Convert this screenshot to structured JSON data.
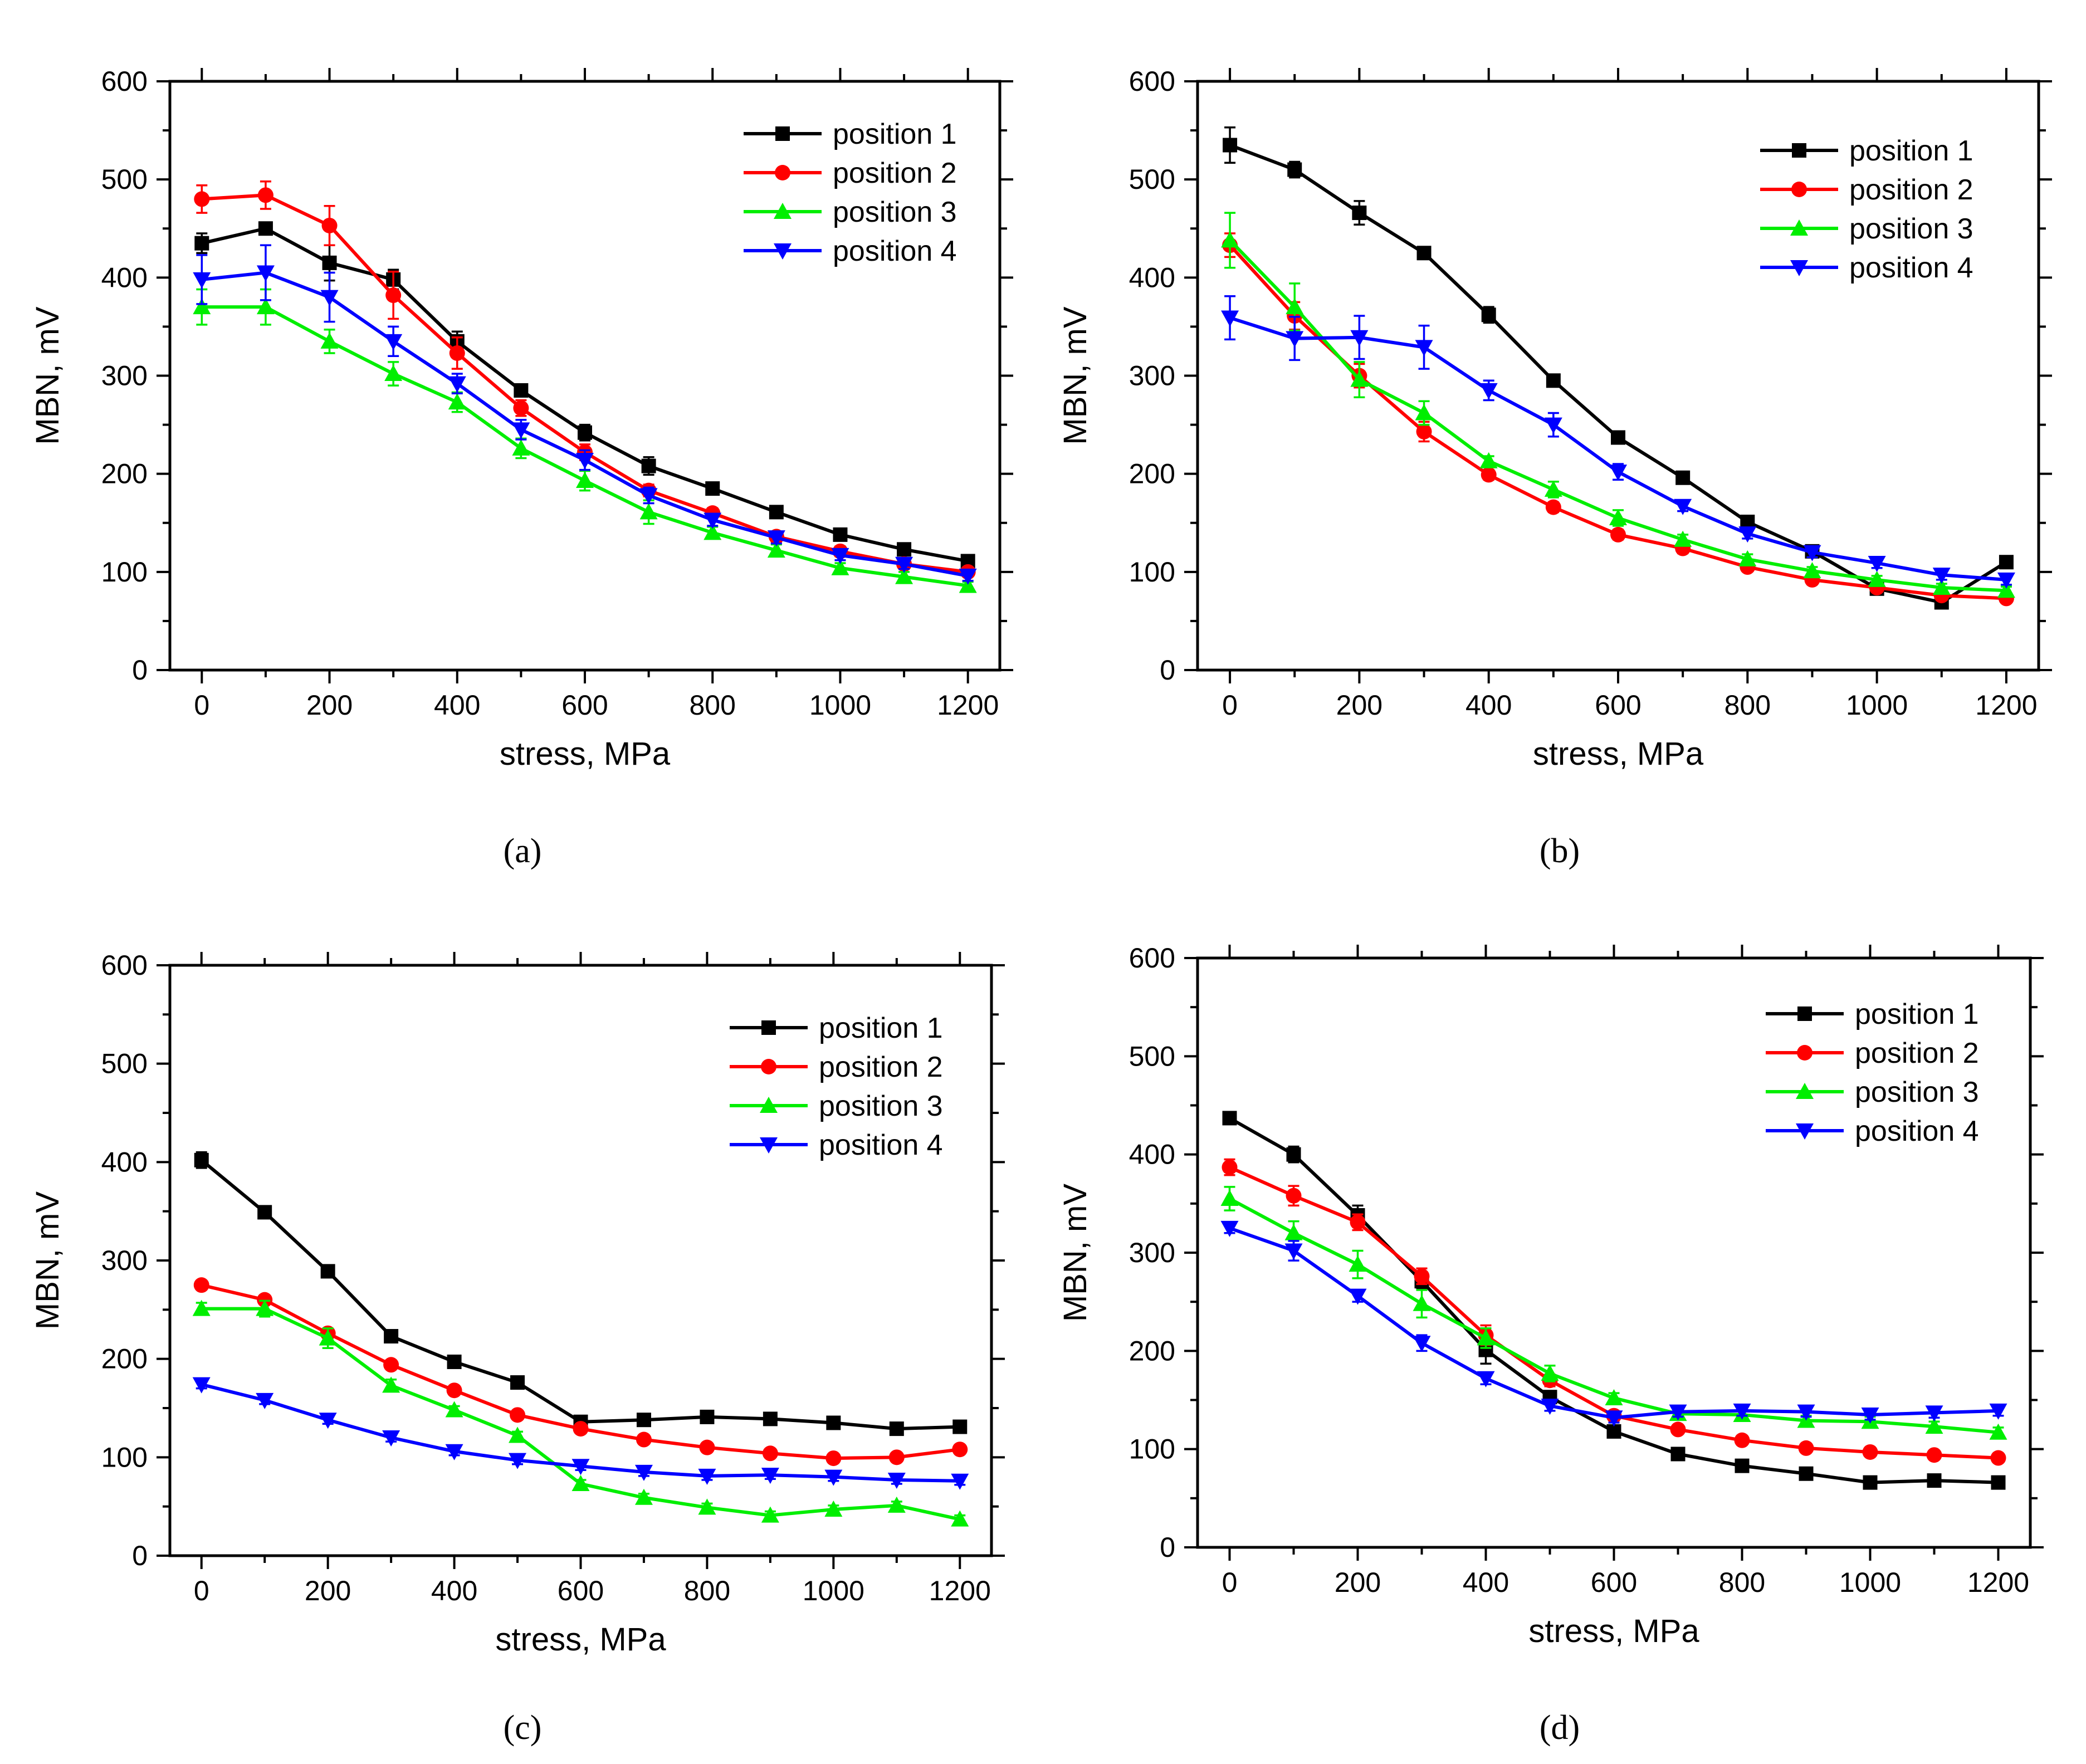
{
  "chart_data": [
    {
      "type": "line",
      "panel": "a",
      "xlabel": "stress, MPa",
      "ylabel": "MBN, mV",
      "xlim": [
        -50,
        1250
      ],
      "ylim": [
        0,
        600
      ],
      "xticks": [
        0,
        200,
        400,
        600,
        800,
        1000,
        1200
      ],
      "yticks": [
        0,
        100,
        200,
        300,
        400,
        500,
        600
      ],
      "x": [
        0,
        100,
        200,
        300,
        400,
        500,
        600,
        700,
        800,
        900,
        1000,
        1100,
        1200
      ],
      "legend_position": "top-right",
      "series": [
        {
          "name": "position 1",
          "color": "#000000",
          "marker": "square",
          "values": [
            435,
            450,
            415,
            398,
            335,
            285,
            242,
            208,
            185,
            161,
            138,
            123,
            111
          ],
          "errors": [
            10,
            6,
            18,
            10,
            10,
            6,
            8,
            9,
            6,
            5,
            5,
            5,
            5
          ]
        },
        {
          "name": "position 2",
          "color": "#ff0000",
          "marker": "circle",
          "values": [
            480,
            484,
            453,
            382,
            323,
            267,
            222,
            183,
            160,
            136,
            121,
            108,
            100
          ],
          "errors": [
            14,
            14,
            20,
            24,
            16,
            8,
            8,
            6,
            5,
            5,
            5,
            5,
            4
          ]
        },
        {
          "name": "position 3",
          "color": "#00ee00",
          "marker": "triangle-up",
          "values": [
            370,
            370,
            335,
            302,
            273,
            226,
            193,
            161,
            140,
            122,
            104,
            95,
            86
          ],
          "errors": [
            18,
            18,
            12,
            12,
            10,
            10,
            10,
            12,
            6,
            6,
            5,
            5,
            4
          ]
        },
        {
          "name": "position 4",
          "color": "#0000ff",
          "marker": "triangle-down",
          "values": [
            398,
            405,
            380,
            335,
            292,
            245,
            214,
            178,
            153,
            135,
            117,
            108,
            96
          ],
          "errors": [
            25,
            28,
            25,
            15,
            10,
            10,
            10,
            8,
            6,
            6,
            5,
            5,
            5
          ]
        }
      ]
    },
    {
      "type": "line",
      "panel": "b",
      "xlabel": "stress, MPa",
      "ylabel": "MBN, mV",
      "xlim": [
        -50,
        1250
      ],
      "ylim": [
        0,
        600
      ],
      "xticks": [
        0,
        200,
        400,
        600,
        800,
        1000,
        1200
      ],
      "yticks": [
        0,
        100,
        200,
        300,
        400,
        500,
        600
      ],
      "x": [
        0,
        100,
        200,
        300,
        400,
        500,
        600,
        700,
        800,
        900,
        1000,
        1100,
        1200
      ],
      "legend_position": "top-right",
      "series": [
        {
          "name": "position 1",
          "color": "#000000",
          "marker": "square",
          "values": [
            535,
            510,
            466,
            425,
            362,
            295,
            237,
            196,
            151,
            121,
            83,
            69,
            110
          ],
          "errors": [
            18,
            8,
            12,
            6,
            8,
            5,
            5,
            5,
            5,
            5,
            4,
            4,
            5
          ]
        },
        {
          "name": "position 2",
          "color": "#ff0000",
          "marker": "circle",
          "values": [
            433,
            361,
            300,
            243,
            199,
            166,
            138,
            124,
            105,
            92,
            84,
            76,
            73
          ],
          "errors": [
            12,
            14,
            12,
            10,
            5,
            5,
            5,
            5,
            4,
            4,
            4,
            4,
            4
          ]
        },
        {
          "name": "position 3",
          "color": "#00ee00",
          "marker": "triangle-up",
          "values": [
            438,
            370,
            296,
            262,
            213,
            184,
            155,
            133,
            113,
            101,
            92,
            84,
            81
          ],
          "errors": [
            28,
            24,
            18,
            12,
            5,
            8,
            8,
            5,
            5,
            4,
            4,
            4,
            4
          ]
        },
        {
          "name": "position 4",
          "color": "#0000ff",
          "marker": "triangle-down",
          "values": [
            359,
            338,
            339,
            329,
            285,
            250,
            202,
            167,
            139,
            120,
            109,
            97,
            92
          ],
          "errors": [
            22,
            22,
            22,
            22,
            10,
            12,
            8,
            5,
            5,
            5,
            5,
            5,
            5
          ]
        }
      ]
    },
    {
      "type": "line",
      "panel": "c",
      "xlabel": "stress, MPa",
      "ylabel": "MBN, mV",
      "xlim": [
        -50,
        1250
      ],
      "ylim": [
        0,
        600
      ],
      "xticks": [
        0,
        200,
        400,
        600,
        800,
        1000,
        1200
      ],
      "yticks": [
        0,
        100,
        200,
        300,
        400,
        500,
        600
      ],
      "x": [
        0,
        100,
        200,
        300,
        400,
        500,
        600,
        700,
        800,
        900,
        1000,
        1100,
        1200
      ],
      "legend_position": "top-right",
      "series": [
        {
          "name": "position 1",
          "color": "#000000",
          "marker": "square",
          "values": [
            402,
            349,
            289,
            223,
            197,
            176,
            136,
            138,
            141,
            139,
            135,
            129,
            131
          ],
          "errors": [
            8,
            4,
            6,
            4,
            4,
            4,
            4,
            4,
            4,
            4,
            4,
            4,
            4
          ]
        },
        {
          "name": "position 2",
          "color": "#ff0000",
          "marker": "circle",
          "values": [
            275,
            260,
            226,
            194,
            168,
            143,
            129,
            118,
            110,
            104,
            99,
            100,
            108
          ],
          "errors": [
            4,
            4,
            4,
            4,
            4,
            4,
            4,
            4,
            4,
            4,
            4,
            4,
            4
          ]
        },
        {
          "name": "position 3",
          "color": "#00ee00",
          "marker": "triangle-up",
          "values": [
            251,
            251,
            221,
            173,
            148,
            122,
            73,
            59,
            49,
            41,
            47,
            51,
            37
          ],
          "errors": [
            6,
            8,
            10,
            6,
            4,
            4,
            4,
            4,
            4,
            4,
            4,
            4,
            4
          ]
        },
        {
          "name": "position 4",
          "color": "#0000ff",
          "marker": "triangle-down",
          "values": [
            174,
            158,
            138,
            120,
            106,
            97,
            91,
            85,
            81,
            82,
            80,
            77,
            76
          ],
          "errors": [
            4,
            4,
            4,
            4,
            4,
            4,
            4,
            4,
            4,
            4,
            4,
            4,
            4
          ]
        }
      ]
    },
    {
      "type": "line",
      "panel": "d",
      "xlabel": "stress, MPa",
      "ylabel": "MBN, mV",
      "xlim": [
        -50,
        1250
      ],
      "ylim": [
        0,
        600
      ],
      "xticks": [
        0,
        200,
        400,
        600,
        800,
        1000,
        1200
      ],
      "yticks": [
        0,
        100,
        200,
        300,
        400,
        500,
        600
      ],
      "x": [
        0,
        100,
        200,
        300,
        400,
        500,
        600,
        700,
        800,
        900,
        1000,
        1100,
        1200
      ],
      "legend_position": "top-right",
      "series": [
        {
          "name": "position 1",
          "color": "#000000",
          "marker": "square",
          "values": [
            437,
            400,
            338,
            271,
            201,
            153,
            118,
            95,
            83,
            75,
            66,
            68,
            66
          ],
          "errors": [
            5,
            8,
            10,
            8,
            14,
            5,
            4,
            4,
            4,
            4,
            4,
            4,
            4
          ]
        },
        {
          "name": "position 2",
          "color": "#ff0000",
          "marker": "circle",
          "values": [
            387,
            358,
            331,
            276,
            216,
            170,
            134,
            120,
            109,
            101,
            97,
            94,
            91
          ],
          "errors": [
            8,
            10,
            8,
            8,
            10,
            6,
            5,
            4,
            4,
            4,
            4,
            4,
            4
          ]
        },
        {
          "name": "position 3",
          "color": "#00ee00",
          "marker": "triangle-up",
          "values": [
            355,
            320,
            288,
            248,
            213,
            177,
            152,
            136,
            135,
            129,
            128,
            123,
            117
          ],
          "errors": [
            12,
            12,
            14,
            14,
            10,
            8,
            5,
            5,
            5,
            5,
            5,
            5,
            5
          ]
        },
        {
          "name": "position 4",
          "color": "#0000ff",
          "marker": "triangle-down",
          "values": [
            325,
            302,
            256,
            208,
            172,
            144,
            132,
            138,
            139,
            138,
            135,
            137,
            139
          ],
          "errors": [
            5,
            10,
            6,
            8,
            6,
            5,
            5,
            5,
            5,
            5,
            5,
            5,
            5
          ]
        }
      ]
    }
  ],
  "panel_labels": [
    "(a)",
    "(b)",
    "(c)",
    "(d)"
  ]
}
